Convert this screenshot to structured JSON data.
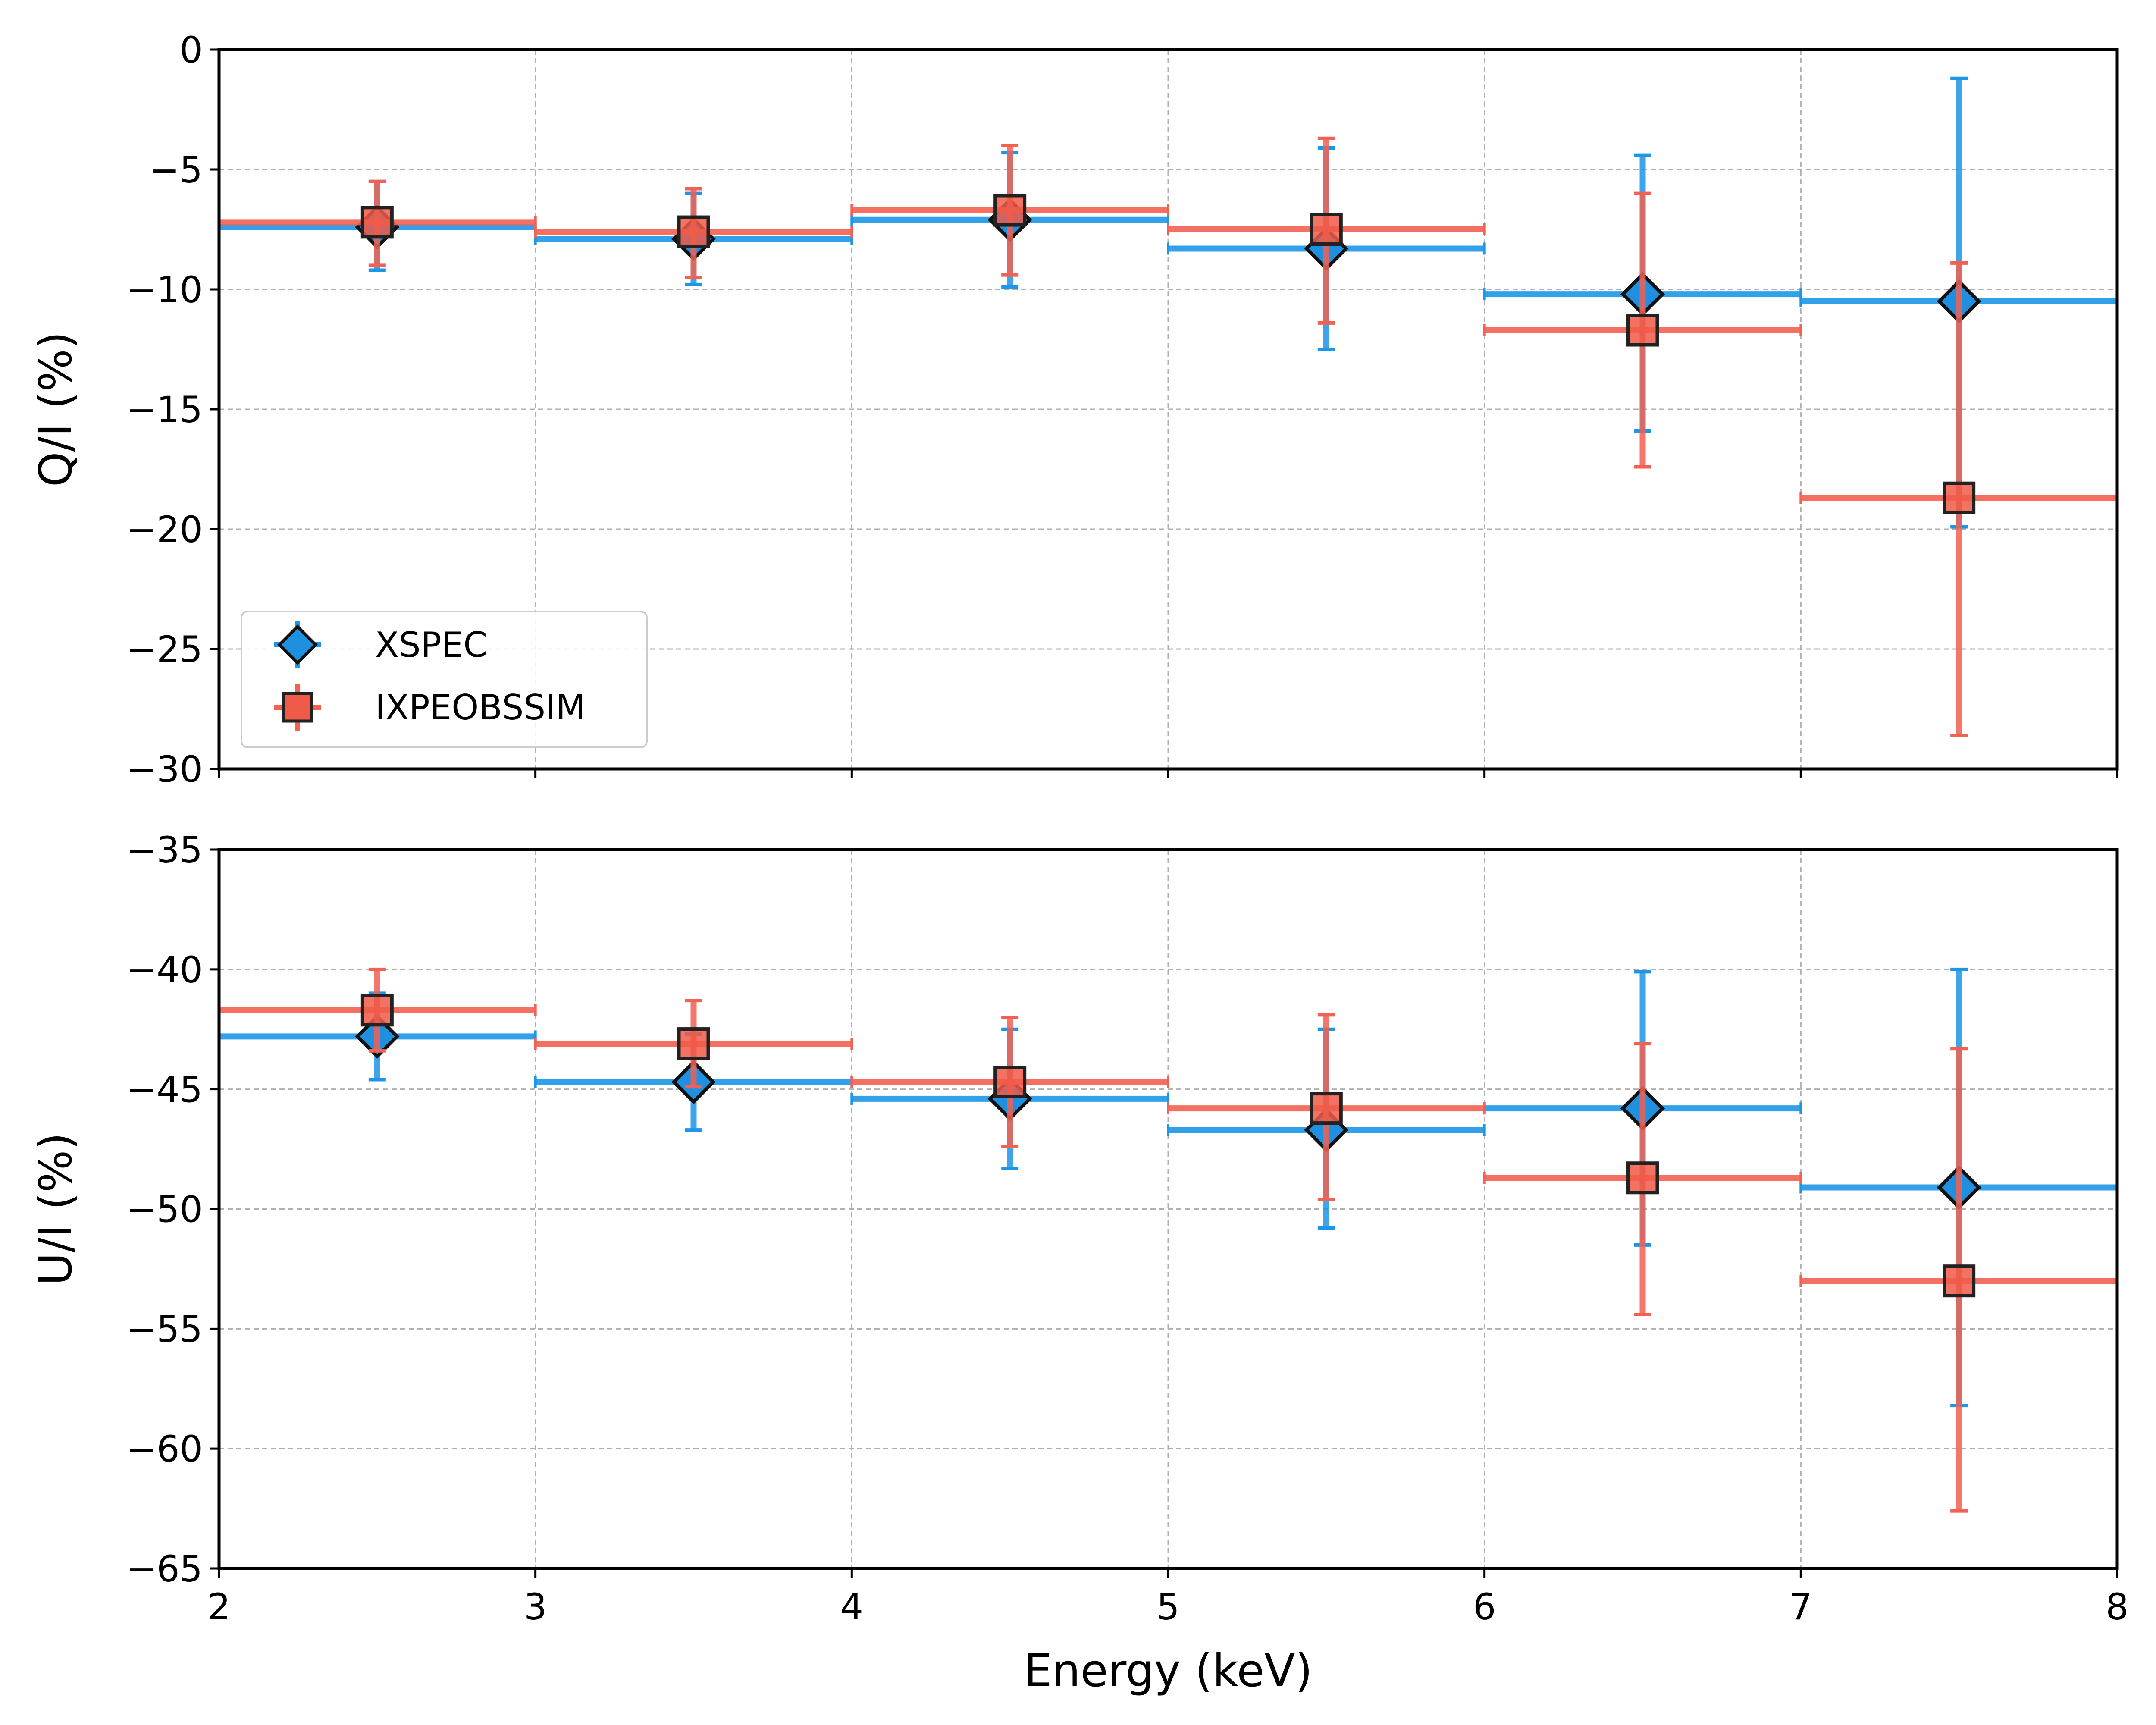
{
  "chart_data": {
    "type": "scatter",
    "shared_x": {
      "label": "Energy (keV)",
      "range": [
        2,
        8
      ],
      "ticks": [
        2,
        3,
        4,
        5,
        6,
        7,
        8
      ],
      "tick_labels": [
        "2",
        "3",
        "4",
        "5",
        "6",
        "7",
        "8"
      ]
    },
    "legend": {
      "location": "lower-left of top panel",
      "entries": [
        {
          "name": "XSPEC",
          "marker": "diamond"
        },
        {
          "name": "IXPEOBSSIM",
          "marker": "square"
        }
      ]
    },
    "colors": {
      "xspec_fill": "#1f90e0",
      "xspec_bar": "#1e96e8",
      "ixpe_fill": "#f05a48",
      "ixpe_bar": "#f26152",
      "grid": "#b0b0b0",
      "axes": "#000000"
    },
    "panels": [
      {
        "ylabel": "Q/I (%)",
        "ylim": [
          -30,
          0
        ],
        "yticks": [
          0,
          -5,
          -10,
          -15,
          -20,
          -25,
          -30
        ],
        "ytick_labels": [
          "0",
          "−5",
          "−10",
          "−15",
          "−20",
          "−25",
          "−30"
        ],
        "show_x_tick_labels": false,
        "series": [
          {
            "name": "XSPEC",
            "x": [
              2.5,
              3.5,
              4.5,
              5.5,
              6.5,
              7.5
            ],
            "xerr": 0.5,
            "y": [
              -7.4,
              -7.9,
              -7.1,
              -8.3,
              -10.2,
              -10.5
            ],
            "ylow": [
              -9.2,
              -9.8,
              -9.9,
              -12.5,
              -15.9,
              -19.9
            ],
            "yhigh": [
              -5.5,
              -6.0,
              -4.3,
              -4.1,
              -4.4,
              -1.2
            ]
          },
          {
            "name": "IXPEOBSSIM",
            "x": [
              2.5,
              3.5,
              4.5,
              5.5,
              6.5,
              7.5
            ],
            "xerr": 0.5,
            "y": [
              -7.2,
              -7.6,
              -6.7,
              -7.5,
              -11.7,
              -18.7
            ],
            "ylow": [
              -9.0,
              -9.5,
              -9.4,
              -11.4,
              -17.4,
              -28.6
            ],
            "yhigh": [
              -5.5,
              -5.8,
              -4.0,
              -3.7,
              -6.0,
              -8.9
            ]
          }
        ]
      },
      {
        "ylabel": "U/I (%)",
        "ylim": [
          -65,
          -35
        ],
        "yticks": [
          -35,
          -40,
          -45,
          -50,
          -55,
          -60,
          -65
        ],
        "ytick_labels": [
          "−35",
          "−40",
          "−45",
          "−50",
          "−55",
          "−60",
          "−65"
        ],
        "show_x_tick_labels": true,
        "series": [
          {
            "name": "XSPEC",
            "x": [
              2.5,
              3.5,
              4.5,
              5.5,
              6.5,
              7.5
            ],
            "xerr": 0.5,
            "y": [
              -42.8,
              -44.7,
              -45.4,
              -46.7,
              -45.8,
              -49.1
            ],
            "ylow": [
              -44.6,
              -46.7,
              -48.3,
              -50.8,
              -51.5,
              -58.2
            ],
            "yhigh": [
              -41.0,
              -42.7,
              -42.5,
              -42.5,
              -40.1,
              -40.0
            ]
          },
          {
            "name": "IXPEOBSSIM",
            "x": [
              2.5,
              3.5,
              4.5,
              5.5,
              6.5,
              7.5
            ],
            "xerr": 0.5,
            "y": [
              -41.7,
              -43.1,
              -44.7,
              -45.8,
              -48.7,
              -53.0
            ],
            "ylow": [
              -43.4,
              -44.9,
              -47.4,
              -49.6,
              -54.4,
              -62.6
            ],
            "yhigh": [
              -40.0,
              -41.3,
              -42.0,
              -41.9,
              -43.1,
              -43.3
            ]
          }
        ]
      }
    ]
  }
}
